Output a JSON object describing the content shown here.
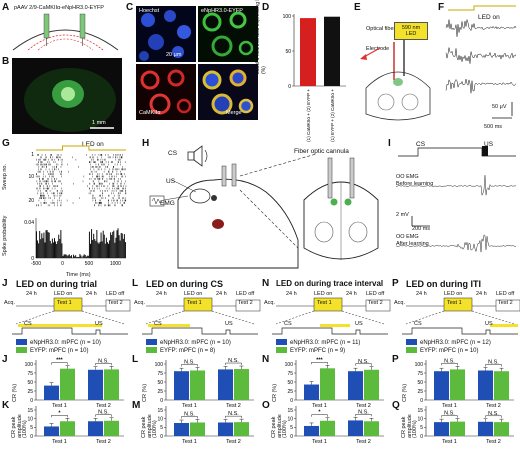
{
  "panels": {
    "A": {
      "label": "A",
      "construct": "pAAV 2/9-CaMKIIα-eNpHR3.0-EYFP"
    },
    "B": {
      "label": "B",
      "scale": "1 mm"
    },
    "C": {
      "label": "C",
      "channels": [
        "Hoechst",
        "eNpHR3.0-EYFP",
        "CaMKIIα",
        "Merge"
      ],
      "scale": "20 μm"
    },
    "D": {
      "label": "D",
      "ylabel": "Label 1 neurons also expressing Label 2 (%)",
      "ticks": [
        "0",
        "50",
        "100"
      ],
      "bars": [
        {
          "name": "(1) CaMKIIα + (2) EYFP +",
          "value": 97,
          "color": "#d62020"
        },
        {
          "name": "(1) EYFP + (2) CaMKIIα +",
          "value": 99,
          "color": "#111111"
        }
      ]
    },
    "E": {
      "label": "E",
      "fiber": "Optical fiber",
      "led": "590 nm LED",
      "electrode": "Electrode"
    },
    "F": {
      "label": "F",
      "led_on": "LED on",
      "scale_v": "50 μV",
      "scale_t": "500 ms"
    },
    "G": {
      "label": "G",
      "led_on": "LED on",
      "ylabel_top": "Sweep no.",
      "ylabel_bottom": "Spike probability",
      "xlabel": "Time (ms)",
      "xticks": [
        "-500",
        "0",
        "500",
        "1000"
      ],
      "yticks_top": [
        "1",
        "10",
        "20"
      ],
      "yticks_bottom": [
        "0",
        "0.04"
      ]
    },
    "H": {
      "label": "H",
      "cs": "CS",
      "us": "US",
      "emg": "EMG",
      "cannula": "Fiber optic cannula"
    },
    "I": {
      "label": "I",
      "cs": "CS",
      "us": "US",
      "before": "OO EMG",
      "before_sub": "Before learning",
      "after": "OO EMG",
      "after_sub": "After learning",
      "scale_v": "2 mV",
      "scale_t": "200 ms"
    },
    "J": {
      "label": "J",
      "title": "LED on during trial",
      "seq": {
        "acq": "Acq.",
        "t1": "24 h",
        "test1": "Test 1",
        "led_on": "LED on",
        "t2": "24 h",
        "test2": "Test 2",
        "led_off": "LED off",
        "t0": "24 h"
      },
      "cs": "CS",
      "us": "US",
      "legend": [
        "eNpHR3.0: mPFC (n = 10)",
        "EYFP: mPFC (n = 10)"
      ]
    },
    "L": {
      "label": "L",
      "title": "LED on during CS",
      "seq": {
        "acq": "Acq.",
        "t1": "24 h",
        "test1": "Test 1",
        "led_on": "LED on",
        "t2": "24 h",
        "test2": "Test 2",
        "led_off": "LED off",
        "t0": "24 h"
      },
      "cs": "CS",
      "us": "US",
      "legend": [
        "eNpHR3.0: mPFC (n = 10)",
        "EYFP: mPFC (n = 8)"
      ]
    },
    "N": {
      "label": "N",
      "title": "LED on during trace interval",
      "seq": {
        "acq": "Acq.",
        "t1": "24 h",
        "test1": "Test 1",
        "led_on": "LED on",
        "t2": "24 h",
        "test2": "Test 2",
        "led_off": "LED off",
        "t0": "24 h"
      },
      "cs": "CS",
      "us": "US",
      "legend": [
        "eNpHR3.0: mPFC (n = 11)",
        "EYFP: mPFC (n = 9)"
      ]
    },
    "P": {
      "label": "P",
      "title": "LED on during ITI",
      "seq": {
        "acq": "Acq.",
        "t1": "24 h",
        "test1": "Test 1",
        "led_on": "LED on",
        "t2": "24 h",
        "test2": "Test 2",
        "led_off": "LED off",
        "t0": "24 h"
      },
      "cs": "CS",
      "us": "US",
      "legend": [
        "eNpHR3.0: mPFC (n = 12)",
        "EYFP: mPFC (n = 10)"
      ]
    }
  },
  "colors": {
    "npHR": "#1f4fb4",
    "eyfp": "#5cba3c",
    "led": "#f3e12a"
  },
  "chart_data": [
    {
      "panel": "J",
      "type": "bar",
      "ylabel": "CR (%)",
      "ylim": [
        0,
        100
      ],
      "yticks": [
        "0",
        "25",
        "50",
        "75",
        "100"
      ],
      "categories": [
        "Test 1",
        "Test 2"
      ],
      "series": [
        {
          "name": "eNpHR3.0",
          "values": [
            40,
            84
          ]
        },
        {
          "name": "EYFP",
          "values": [
            87,
            85
          ]
        }
      ],
      "sig": [
        "***",
        "N.S."
      ]
    },
    {
      "panel": "L",
      "type": "bar",
      "ylabel": "CR (%)",
      "ylim": [
        0,
        100
      ],
      "yticks": [
        "0",
        "25",
        "50",
        "75",
        "100"
      ],
      "categories": [
        "Test 1",
        "Test 2"
      ],
      "series": [
        {
          "name": "eNpHR3.0",
          "values": [
            80,
            85
          ]
        },
        {
          "name": "EYFP",
          "values": [
            82,
            86
          ]
        }
      ],
      "sig": [
        "N.S.",
        "N.S."
      ]
    },
    {
      "panel": "N",
      "type": "bar",
      "ylabel": "CR (%)",
      "ylim": [
        0,
        100
      ],
      "yticks": [
        "0",
        "25",
        "50",
        "75",
        "100"
      ],
      "categories": [
        "Test 1",
        "Test 2"
      ],
      "series": [
        {
          "name": "eNpHR3.0",
          "values": [
            43,
            80
          ]
        },
        {
          "name": "EYFP",
          "values": [
            88,
            84
          ]
        }
      ],
      "sig": [
        "***",
        "N.S."
      ]
    },
    {
      "panel": "P",
      "type": "bar",
      "ylabel": "CR (%)",
      "ylim": [
        0,
        100
      ],
      "yticks": [
        "0",
        "25",
        "50",
        "75",
        "100"
      ],
      "categories": [
        "Test 1",
        "Test 2"
      ],
      "series": [
        {
          "name": "eNpHR3.0",
          "values": [
            80,
            82
          ]
        },
        {
          "name": "EYFP",
          "values": [
            85,
            80
          ]
        }
      ],
      "sig": [
        "N.S.",
        "N.S."
      ]
    },
    {
      "panel": "K",
      "type": "bar",
      "ylabel": "CR peak amplitude (100%)",
      "ylim": [
        0,
        15
      ],
      "yticks": [
        "0",
        "5",
        "10",
        "15"
      ],
      "categories": [
        "Test 1",
        "Test 2"
      ],
      "series": [
        {
          "name": "eNpHR3.0",
          "values": [
            5.5,
            8.5
          ]
        },
        {
          "name": "EYFP",
          "values": [
            8.5,
            8.8
          ]
        }
      ],
      "sig": [
        "*",
        "N.S."
      ]
    },
    {
      "panel": "M",
      "type": "bar",
      "ylabel": "CR peak amplitude (100%)",
      "ylim": [
        0,
        15
      ],
      "yticks": [
        "0",
        "5",
        "10",
        "15"
      ],
      "categories": [
        "Test 1",
        "Test 2"
      ],
      "series": [
        {
          "name": "eNpHR3.0",
          "values": [
            7.5,
            7.8
          ]
        },
        {
          "name": "EYFP",
          "values": [
            7.8,
            8.0
          ]
        }
      ],
      "sig": [
        "N.S.",
        "N.S."
      ]
    },
    {
      "panel": "O",
      "type": "bar",
      "ylabel": "CR peak amplitude (100%)",
      "ylim": [
        0,
        15
      ],
      "yticks": [
        "0",
        "5",
        "10",
        "15"
      ],
      "categories": [
        "Test 1",
        "Test 2"
      ],
      "series": [
        {
          "name": "eNpHR3.0",
          "values": [
            5.8,
            9.0
          ]
        },
        {
          "name": "EYFP",
          "values": [
            8.8,
            8.5
          ]
        }
      ],
      "sig": [
        "*",
        "N.S."
      ]
    },
    {
      "panel": "Q",
      "type": "bar",
      "ylabel": "CR peak amplitude (100%)",
      "ylim": [
        0,
        15
      ],
      "yticks": [
        "0",
        "5",
        "10",
        "15"
      ],
      "categories": [
        "Test 1",
        "Test 2"
      ],
      "series": [
        {
          "name": "eNpHR3.0",
          "values": [
            8.0,
            8.2
          ]
        },
        {
          "name": "EYFP",
          "values": [
            8.3,
            8.0
          ]
        }
      ],
      "sig": [
        "N.S.",
        "N.S."
      ]
    }
  ]
}
